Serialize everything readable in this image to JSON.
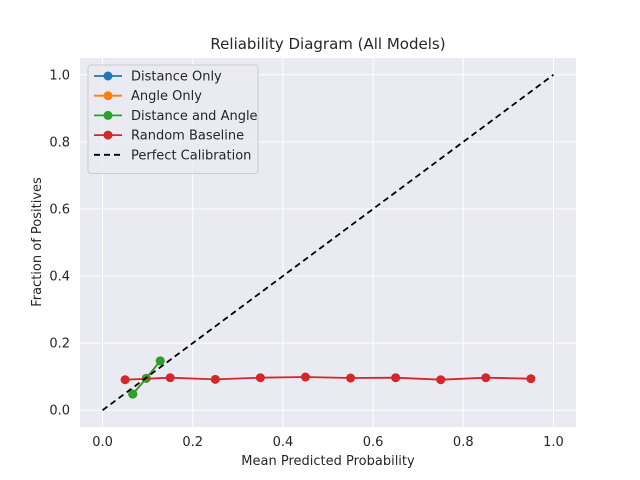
{
  "chart_data": {
    "type": "line",
    "title": "Reliability Diagram (All Models)",
    "xlabel": "Mean Predicted Probability",
    "ylabel": "Fraction of Positives",
    "xlim": [
      -0.05,
      1.05
    ],
    "ylim": [
      -0.05,
      1.05
    ],
    "xticks": [
      "0.0",
      "0.2",
      "0.4",
      "0.6",
      "0.8",
      "1.0"
    ],
    "yticks": [
      "0.0",
      "0.2",
      "0.4",
      "0.6",
      "0.8",
      "1.0"
    ],
    "grid": true,
    "legend_position": "top-left",
    "series": [
      {
        "name": "Distance Only",
        "color": "#1f77b4",
        "marker": "circle",
        "x": [
          0.067,
          0.097,
          0.128
        ],
        "y": [
          0.048,
          0.095,
          0.147
        ]
      },
      {
        "name": "Angle Only",
        "color": "#ff7f0e",
        "marker": "circle",
        "x": [
          0.067,
          0.097,
          0.128
        ],
        "y": [
          0.048,
          0.095,
          0.147
        ]
      },
      {
        "name": "Distance and Angle",
        "color": "#2ca02c",
        "marker": "circle",
        "x": [
          0.067,
          0.097,
          0.128
        ],
        "y": [
          0.048,
          0.095,
          0.147
        ]
      },
      {
        "name": "Random Baseline",
        "color": "#d62728",
        "marker": "circle",
        "x": [
          0.05,
          0.15,
          0.25,
          0.35,
          0.45,
          0.55,
          0.65,
          0.75,
          0.85,
          0.95
        ],
        "y": [
          0.091,
          0.097,
          0.092,
          0.097,
          0.099,
          0.096,
          0.097,
          0.091,
          0.097,
          0.094
        ]
      },
      {
        "name": "Perfect Calibration",
        "color": "#000000",
        "marker": "none",
        "dash": true,
        "x": [
          0.0,
          1.0
        ],
        "y": [
          0.0,
          1.0
        ]
      }
    ]
  }
}
